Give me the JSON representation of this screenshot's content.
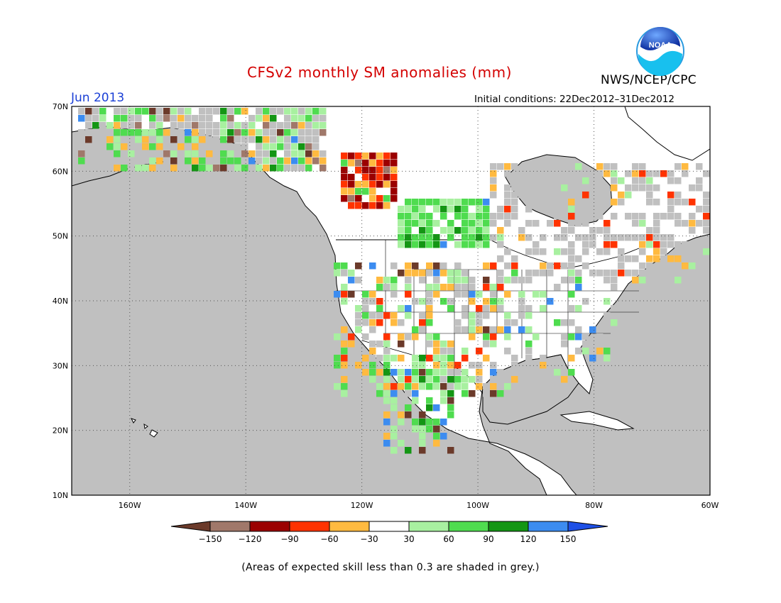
{
  "header": {
    "title": "CFSv2 monthly SM anomalies (mm)",
    "valid_month": "Jun 2013",
    "initial_conditions": "Initial conditions: 22Dec2012–31Dec2012",
    "agency": "NWS/NCEP/CPC",
    "logo_text": "NOAA"
  },
  "map": {
    "projection": "cylindrical equidistant",
    "lon_range": [
      -170,
      -60
    ],
    "lat_range": [
      10,
      70
    ],
    "lat_labels": [
      "70N",
      "60N",
      "50N",
      "40N",
      "30N",
      "20N",
      "10N"
    ],
    "lon_labels": [
      "160W",
      "140W",
      "120W",
      "100W",
      "80W",
      "60W"
    ],
    "grid_lines": "dotted",
    "masked_color": "#c0c0c0",
    "land_color": "#ffffff",
    "ocean_color": "#c0c0c0"
  },
  "colorbar": {
    "labels": [
      "−150",
      "−120",
      "−90",
      "−60",
      "−30",
      "30",
      "60",
      "90",
      "120",
      "150"
    ],
    "colors": [
      "#6b3a2a",
      "#a0786a",
      "#9b0000",
      "#ff3300",
      "#ffba40",
      "#ffffff",
      "#a8f0a0",
      "#4fdc4f",
      "#149614",
      "#3c8cf0",
      "#1e50e6"
    ]
  },
  "footnote": "(Areas of expected skill less than 0.3 are shaded in grey.)"
}
